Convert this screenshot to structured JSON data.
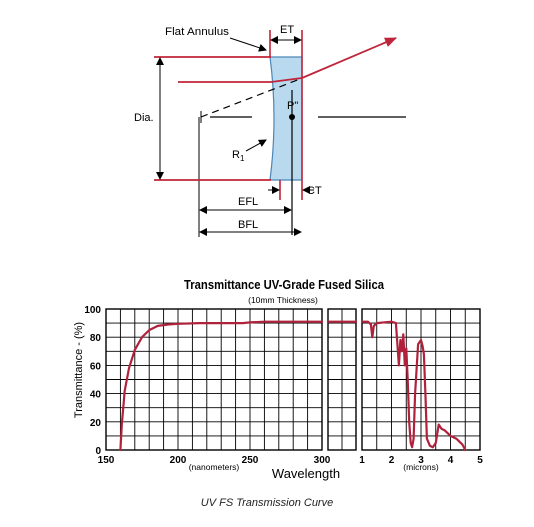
{
  "lens_diagram": {
    "labels": {
      "flat_annulus": "Flat Annulus",
      "et": "ET",
      "dia": "Dia.",
      "p_double_prime": "P\"",
      "r1_main": "R",
      "r1_sub": "1",
      "efl": "EFL",
      "bfl": "BFL",
      "ct": "CT"
    },
    "colors": {
      "lens_fill": "#b9d9ee",
      "lens_edge": "#4c86b8",
      "ray": "#c0243a",
      "dim_line": "#000000"
    }
  },
  "chart_data": [
    {
      "type": "line",
      "title": "Transmittance UV-Grade Fused Silica",
      "subtitle": "(10mm Thickness)",
      "ylabel": "Transmittance - (%)",
      "xlabel": "Wavelength",
      "grid": true,
      "line_color": "#b0213b",
      "y_ticks": [
        "0",
        "20",
        "40",
        "60",
        "80",
        "100"
      ],
      "ylim": [
        0,
        100
      ],
      "panels": [
        {
          "name": "nanometers",
          "unit_label": "(nanometers)",
          "xlim": [
            150,
            300
          ],
          "x_ticks": [
            "150",
            "200",
            "250",
            "300"
          ],
          "series": [
            {
              "x": [
                160,
                161,
                163,
                166,
                170,
                175,
                180,
                186,
                193,
                200,
                215,
                230,
                245,
                250,
                260,
                280,
                300
              ],
              "y": [
                0,
                18,
                42,
                58,
                71,
                80,
                85,
                88,
                89,
                89.5,
                90,
                90,
                90,
                90.5,
                91,
                91,
                91
              ]
            }
          ]
        },
        {
          "name": "gap",
          "unit_label": "",
          "xlim": [
            0,
            1
          ],
          "x_ticks": [],
          "series": [
            {
              "x": [
                0,
                1
              ],
              "y": [
                91,
                91
              ]
            }
          ]
        },
        {
          "name": "microns",
          "unit_label": "(microns)",
          "xlim": [
            1,
            5
          ],
          "x_ticks": [
            "1",
            "2",
            "3",
            "4",
            "5"
          ],
          "series": [
            {
              "x": [
                1.0,
                1.2,
                1.3,
                1.35,
                1.4,
                1.5,
                2.0,
                2.15,
                2.2,
                2.25,
                2.3,
                2.35,
                2.4,
                2.45,
                2.5,
                2.55,
                2.6,
                2.65,
                2.7,
                2.75,
                2.8,
                2.9,
                3.0,
                3.05,
                3.1,
                3.15,
                3.2,
                3.3,
                3.4,
                3.5,
                3.6,
                3.7,
                3.8,
                3.9,
                4.0,
                4.2,
                4.4,
                4.5
              ],
              "y": [
                91,
                91,
                89,
                80,
                88,
                90,
                91,
                90,
                75,
                60,
                78,
                70,
                82,
                60,
                72,
                50,
                20,
                5,
                2,
                8,
                40,
                75,
                78,
                74,
                68,
                40,
                8,
                3,
                2,
                5,
                18,
                15,
                14,
                12,
                10,
                8,
                4,
                0
              ]
            }
          ]
        }
      ]
    }
  ],
  "caption": "UV FS Transmission Curve"
}
